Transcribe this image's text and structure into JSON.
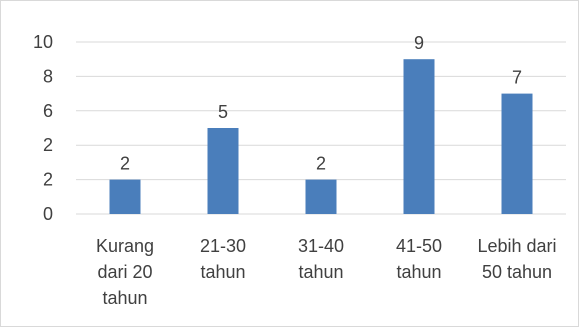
{
  "chart_data": {
    "type": "bar",
    "categories": [
      [
        "Kurang",
        "dari 20",
        "tahun"
      ],
      [
        "21-30",
        "tahun"
      ],
      [
        "31-40",
        "tahun"
      ],
      [
        "41-50",
        "tahun"
      ],
      [
        "Lebih dari",
        "50 tahun"
      ]
    ],
    "values": [
      2,
      5,
      2,
      9,
      7
    ],
    "data_labels": [
      "2",
      "5",
      "2",
      "9",
      "7"
    ],
    "y_ticks": [
      "0",
      "2",
      "2",
      "6",
      "8",
      "10"
    ],
    "ylim": [
      0,
      10
    ],
    "grid": true,
    "legend": "none",
    "colors": {
      "bar": "#4a7ebb",
      "grid": "#d9d9d9",
      "text": "#404040"
    }
  }
}
